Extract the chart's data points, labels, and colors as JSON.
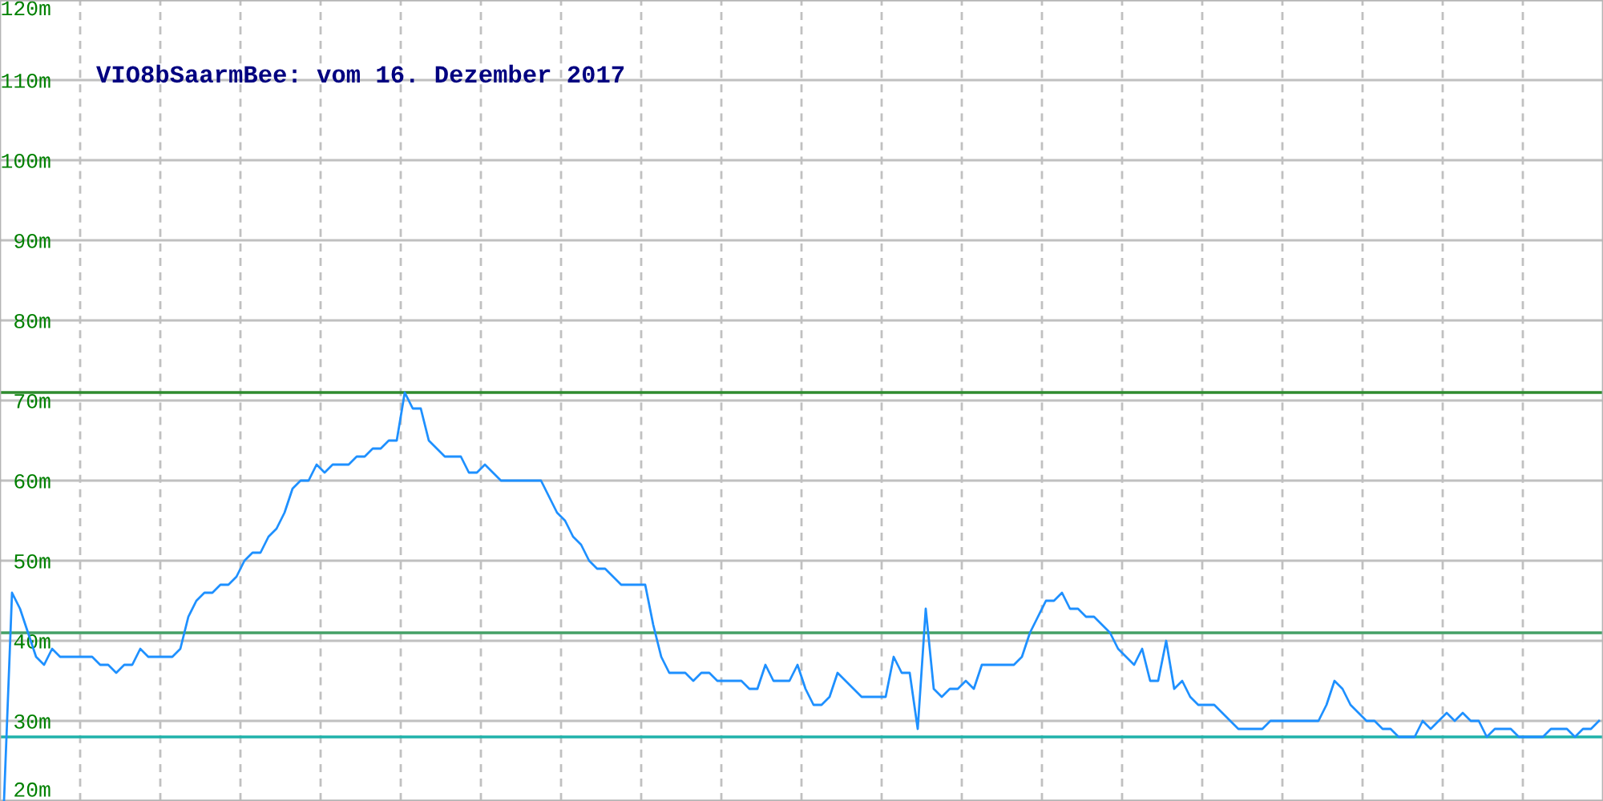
{
  "chart_data": {
    "type": "line",
    "title": "VIO8bSaarmBee: vom 16. Dezember 2017",
    "categories": [
      null,
      null,
      null,
      null,
      null,
      null,
      null,
      null,
      null,
      null,
      null,
      null,
      null,
      null,
      null,
      null,
      null,
      null,
      null,
      null,
      null,
      null,
      null,
      null,
      null,
      null,
      null,
      null,
      null,
      null,
      null,
      null,
      null,
      null,
      null,
      null,
      null,
      null,
      null,
      null,
      null,
      null,
      null,
      null,
      null,
      null,
      null,
      null,
      null,
      null,
      null,
      null,
      null,
      null,
      null,
      null,
      null,
      null,
      null,
      null,
      null,
      null,
      null,
      null,
      null,
      null,
      null,
      null,
      null,
      null,
      null,
      null,
      null,
      null,
      null,
      null,
      null,
      null,
      null,
      null,
      null,
      null,
      null,
      null,
      null,
      null,
      null,
      null,
      null,
      null,
      null,
      null,
      null,
      null,
      null,
      null,
      null,
      null,
      null,
      null,
      null,
      null,
      null,
      null,
      null,
      null,
      null,
      null,
      null,
      null,
      null,
      null,
      null,
      null,
      null,
      null,
      null,
      null,
      null,
      null,
      null,
      null,
      null,
      null,
      null,
      null,
      null,
      null,
      null,
      null,
      null,
      null,
      null,
      null,
      null,
      null,
      null,
      null,
      null,
      null,
      null,
      null,
      null,
      null,
      null,
      null,
      null,
      null,
      null,
      null,
      null,
      null,
      null,
      null,
      null,
      null,
      null,
      null,
      null,
      null,
      null,
      null,
      null,
      null,
      null,
      null,
      null,
      null,
      null,
      null,
      null,
      null,
      null,
      null,
      null,
      null,
      null,
      null,
      null,
      null,
      null,
      null,
      null,
      null,
      null,
      null,
      null,
      null,
      null,
      null,
      null,
      null,
      null,
      null,
      null,
      null,
      null,
      null,
      null,
      null
    ],
    "series": [
      {
        "color": "#1e90ff",
        "values": [
          20,
          46,
          44,
          41,
          38,
          37,
          39,
          38,
          38,
          38,
          38,
          38,
          37,
          37,
          36,
          37,
          37,
          39,
          38,
          38,
          38,
          38,
          39,
          43,
          45,
          46,
          46,
          47,
          47,
          48,
          50,
          51,
          51,
          53,
          54,
          56,
          59,
          60,
          60,
          62,
          61,
          62,
          62,
          62,
          63,
          63,
          64,
          64,
          65,
          65,
          71,
          69,
          69,
          65,
          64,
          63,
          63,
          63,
          61,
          61,
          62,
          61,
          60,
          60,
          60,
          60,
          60,
          60,
          58,
          56,
          55,
          53,
          52,
          50,
          49,
          49,
          48,
          47,
          47,
          47,
          47,
          42,
          38,
          36,
          36,
          36,
          35,
          36,
          36,
          35,
          35,
          35,
          35,
          34,
          34,
          37,
          35,
          35,
          35,
          37,
          34,
          32,
          32,
          33,
          36,
          35,
          34,
          33,
          33,
          33,
          33,
          38,
          36,
          36,
          29,
          44,
          34,
          33,
          34,
          34,
          35,
          34,
          37,
          37,
          37,
          37,
          37,
          38,
          41,
          43,
          45,
          45,
          46,
          44,
          44,
          43,
          43,
          42,
          41,
          39,
          38,
          37,
          39,
          35,
          35,
          40,
          34,
          35,
          33,
          32,
          32,
          32,
          31,
          30,
          29,
          29,
          29,
          29,
          30,
          30,
          30,
          30,
          30,
          30,
          30,
          32,
          35,
          34,
          32,
          31,
          30,
          30,
          29,
          29,
          28,
          28,
          28,
          30,
          29,
          30,
          31,
          30,
          31,
          30,
          30,
          28,
          29,
          29,
          29,
          28,
          28,
          28,
          28,
          29,
          29,
          29,
          28,
          29,
          29,
          30
        ]
      }
    ],
    "ylim": [
      20,
      120
    ],
    "yticks": [
      {
        "value": 20,
        "label": "20m"
      },
      {
        "value": 30,
        "label": "30m"
      },
      {
        "value": 40,
        "label": "40m"
      },
      {
        "value": 50,
        "label": "50m"
      },
      {
        "value": 60,
        "label": "60m"
      },
      {
        "value": 70,
        "label": "70m"
      },
      {
        "value": 80,
        "label": "80m"
      },
      {
        "value": 90,
        "label": "90m"
      },
      {
        "value": 100,
        "label": "100m"
      },
      {
        "value": 110,
        "label": "110m"
      },
      {
        "value": 120,
        "label": "120m"
      }
    ],
    "grid": true,
    "tick_labels": "y",
    "ref_lines": [
      {
        "axis": "y",
        "value": 71,
        "color": "#2e8b2e"
      },
      {
        "axis": "y",
        "value": 41,
        "color": "#44a066"
      },
      {
        "axis": "y",
        "value": 28,
        "color": "#20b2aa"
      }
    ]
  }
}
